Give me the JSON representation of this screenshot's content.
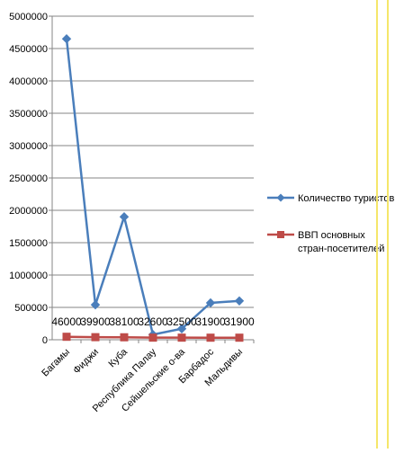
{
  "colors": {
    "series1": "#4a7ebb",
    "series2": "#be4b48",
    "axis": "#868686",
    "grid": "#868686",
    "page_guides": "#f5e66a"
  },
  "chart_data": {
    "type": "line",
    "title": "",
    "xlabel": "",
    "ylabel": "",
    "categories": [
      "Багамы",
      "Фиджи",
      "Куба",
      "Республика Палау",
      "Сейшельские о-ва",
      "Барбадос",
      "Мальдивы"
    ],
    "series": [
      {
        "name": "Количество туристов",
        "values": [
          4650000,
          540000,
          1900000,
          80000,
          170000,
          570000,
          600000
        ],
        "marker": "diamond",
        "color": "#4a7ebb"
      },
      {
        "name": "ВВП основных стран-посетителей",
        "values": [
          46000,
          39900,
          38100,
          32600,
          32500,
          31900,
          31900
        ],
        "marker": "square",
        "color": "#be4b48"
      }
    ],
    "data_labels": [
      "46000",
      "39900",
      "38100",
      "32600",
      "32500",
      "31900",
      "31900"
    ],
    "ylim": [
      0,
      5000000
    ],
    "yticks": [
      "0",
      "500000",
      "1000000",
      "1500000",
      "2000000",
      "2500000",
      "3000000",
      "3500000",
      "4000000",
      "4500000",
      "5000000"
    ],
    "grid": true,
    "legend_position": "right"
  }
}
